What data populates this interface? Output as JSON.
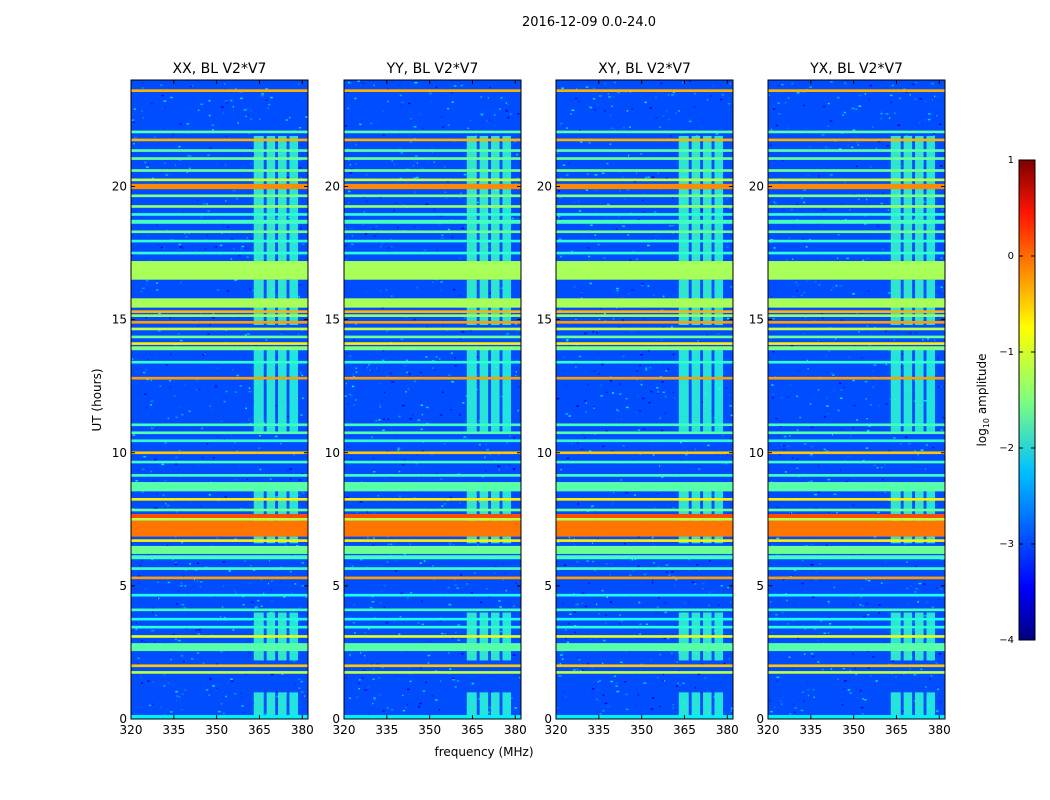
{
  "figure_title": "2016-12-09 0.0-24.0",
  "chart_data": {
    "type": "heatmap",
    "title": "2016-12-09 0.0-24.0",
    "xlabel": "frequency (MHz)",
    "ylabel": "UT (hours)",
    "xlim": [
      320,
      382
    ],
    "ylim": [
      0,
      24
    ],
    "xticks": [
      320,
      335,
      350,
      365,
      380
    ],
    "yticks": [
      0,
      5,
      10,
      15,
      20
    ],
    "colormap": "jet",
    "colorbar": {
      "label": "log10 amplitude",
      "label_text": "log",
      "label_sub": "10",
      "label_rest": " amplitude",
      "range": [
        -4,
        1
      ],
      "ticks": [
        -4,
        -3,
        -2,
        -1,
        0,
        1
      ],
      "tick_labels": [
        "−4",
        "−3",
        "−2",
        "−1",
        "0",
        "1"
      ]
    },
    "panels": [
      {
        "title": "XX, BL V2*V7",
        "polarization": "XX",
        "baseline": "V2*V7"
      },
      {
        "title": "YY, BL V2*V7",
        "polarization": "YY",
        "baseline": "V2*V7"
      },
      {
        "title": "XY, BL V2*V7",
        "polarization": "XY",
        "baseline": "V2*V7"
      },
      {
        "title": "YX, BL V2*V7",
        "polarization": "YX",
        "baseline": "V2*V7"
      }
    ],
    "background_level": -3.0,
    "rfi_bands": [
      {
        "t0": 0.0,
        "t1": 0.15,
        "level": -2.2
      },
      {
        "t0": 1.7,
        "t1": 1.8,
        "level": -1.2
      },
      {
        "t0": 1.95,
        "t1": 2.05,
        "level": -0.6
      },
      {
        "t0": 2.55,
        "t1": 2.85,
        "level": -1.7
      },
      {
        "t0": 3.05,
        "t1": 3.15,
        "level": -1.0
      },
      {
        "t0": 3.4,
        "t1": 3.5,
        "level": -1.9
      },
      {
        "t0": 3.7,
        "t1": 3.8,
        "level": -2.0
      },
      {
        "t0": 4.05,
        "t1": 4.15,
        "level": -1.8
      },
      {
        "t0": 4.6,
        "t1": 4.7,
        "level": -2.0
      },
      {
        "t0": 5.25,
        "t1": 5.35,
        "level": -0.4
      },
      {
        "t0": 5.6,
        "t1": 5.7,
        "level": -1.8
      },
      {
        "t0": 6.0,
        "t1": 6.15,
        "level": -1.8
      },
      {
        "t0": 6.2,
        "t1": 6.5,
        "level": -1.6
      },
      {
        "t0": 6.65,
        "t1": 6.75,
        "level": -0.8
      },
      {
        "t0": 6.85,
        "t1": 7.45,
        "level": -0.2
      },
      {
        "t0": 7.45,
        "t1": 7.55,
        "level": -1.2
      },
      {
        "t0": 7.55,
        "t1": 7.7,
        "level": 0.0
      },
      {
        "t0": 7.8,
        "t1": 7.9,
        "level": -1.6
      },
      {
        "t0": 8.2,
        "t1": 8.3,
        "level": -0.8
      },
      {
        "t0": 8.55,
        "t1": 8.9,
        "level": -1.7
      },
      {
        "t0": 9.1,
        "t1": 9.2,
        "level": -1.8
      },
      {
        "t0": 9.6,
        "t1": 9.7,
        "level": -1.8
      },
      {
        "t0": 9.95,
        "t1": 10.05,
        "level": -0.6
      },
      {
        "t0": 10.4,
        "t1": 10.5,
        "level": -1.9
      },
      {
        "t0": 10.7,
        "t1": 10.8,
        "level": -1.7
      },
      {
        "t0": 11.0,
        "t1": 11.1,
        "level": -1.8
      },
      {
        "t0": 12.75,
        "t1": 12.85,
        "level": -0.4
      },
      {
        "t0": 13.35,
        "t1": 13.45,
        "level": -1.9
      },
      {
        "t0": 13.85,
        "t1": 14.0,
        "level": -1.5
      },
      {
        "t0": 14.05,
        "t1": 14.15,
        "level": -0.8
      },
      {
        "t0": 14.3,
        "t1": 14.4,
        "level": -1.6
      },
      {
        "t0": 14.6,
        "t1": 14.7,
        "level": -1.2
      },
      {
        "t0": 14.85,
        "t1": 14.95,
        "level": -0.4
      },
      {
        "t0": 15.1,
        "t1": 15.2,
        "level": -1.4
      },
      {
        "t0": 15.25,
        "t1": 15.35,
        "level": -0.5
      },
      {
        "t0": 15.45,
        "t1": 15.8,
        "level": -1.3
      },
      {
        "t0": 16.5,
        "t1": 17.2,
        "level": -1.3
      },
      {
        "t0": 17.45,
        "t1": 17.55,
        "level": -1.9
      },
      {
        "t0": 17.9,
        "t1": 18.0,
        "level": -1.9
      },
      {
        "t0": 18.25,
        "t1": 18.35,
        "level": -1.6
      },
      {
        "t0": 18.6,
        "t1": 18.75,
        "level": -1.8
      },
      {
        "t0": 18.9,
        "t1": 19.0,
        "level": -1.9
      },
      {
        "t0": 19.2,
        "t1": 19.3,
        "level": -1.4
      },
      {
        "t0": 19.6,
        "t1": 19.7,
        "level": -1.5
      },
      {
        "t0": 19.9,
        "t1": 20.1,
        "level": -0.3
      },
      {
        "t0": 20.2,
        "t1": 20.3,
        "level": -1.2
      },
      {
        "t0": 20.55,
        "t1": 20.65,
        "level": -1.6
      },
      {
        "t0": 21.0,
        "t1": 21.1,
        "level": -1.6
      },
      {
        "t0": 21.3,
        "t1": 21.4,
        "level": -1.7
      },
      {
        "t0": 21.7,
        "t1": 21.8,
        "level": -0.5
      },
      {
        "t0": 22.0,
        "t1": 22.1,
        "level": -1.7
      },
      {
        "t0": 23.55,
        "t1": 23.65,
        "level": -0.5
      }
    ],
    "rfi_channels": [
      {
        "f0": 363.0,
        "f1": 366.5,
        "level": -1.9
      },
      {
        "f0": 367.5,
        "f1": 370.5,
        "level": -1.9
      },
      {
        "f0": 371.5,
        "f1": 374.5,
        "level": -1.9
      },
      {
        "f0": 375.5,
        "f1": 378.5,
        "level": -2.0
      }
    ],
    "rfi_channel_active_windows": [
      {
        "t0": 0.0,
        "t1": 1.0,
        "level": -1.9
      },
      {
        "t0": 2.2,
        "t1": 4.0,
        "level": -1.8
      },
      {
        "t0": 6.6,
        "t1": 8.6,
        "level": -1.8
      },
      {
        "t0": 10.8,
        "t1": 13.9,
        "level": -1.9
      },
      {
        "t0": 14.8,
        "t1": 16.5,
        "level": -1.8
      },
      {
        "t0": 17.2,
        "t1": 21.9,
        "level": -1.8
      }
    ]
  }
}
